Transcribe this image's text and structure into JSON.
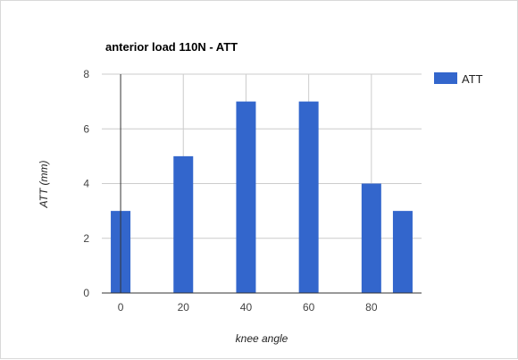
{
  "chart_data": {
    "type": "bar",
    "title": "anterior load 110N - ATT",
    "xlabel": "knee angle",
    "ylabel": "ATT (mm)",
    "x": [
      0,
      20,
      40,
      60,
      80,
      90
    ],
    "series": [
      {
        "name": "ATT",
        "values": [
          3,
          5,
          7,
          7,
          4,
          3
        ],
        "color": "#3366cc"
      }
    ],
    "xlim": [
      -6,
      96
    ],
    "ylim": [
      0,
      8
    ],
    "x_ticks": [
      0,
      20,
      40,
      60,
      80
    ],
    "y_ticks": [
      0,
      2,
      4,
      6,
      8
    ],
    "x_tick_labels": [
      "0",
      "20",
      "40",
      "60",
      "80"
    ],
    "y_tick_labels": [
      "0",
      "2",
      "4",
      "6",
      "8"
    ],
    "grid": true,
    "legend": "right"
  }
}
